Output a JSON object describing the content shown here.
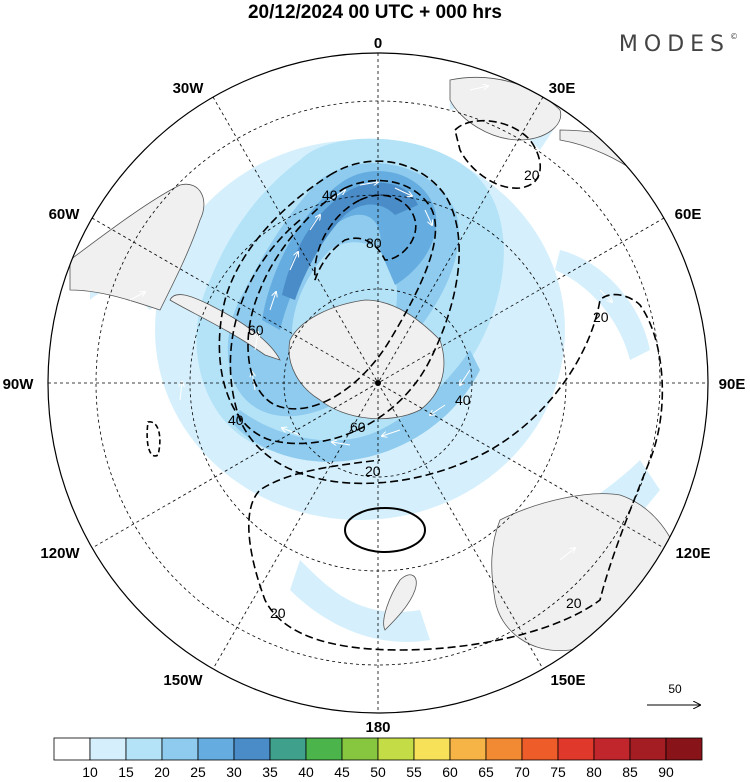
{
  "header": {
    "title": "20/12/2024  00 UTC  + 000 hrs",
    "brand": "MODES",
    "brand_mark": "©"
  },
  "map": {
    "projection": "south polar stereographic",
    "meridian_labels": [
      "0",
      "30E",
      "60E",
      "90E",
      "120E",
      "150E",
      "180",
      "150W",
      "120W",
      "90W",
      "60W",
      "30W"
    ],
    "contour_labels": [
      "40",
      "80",
      "60",
      "60",
      "40",
      "20",
      "20",
      "20",
      "40",
      "20",
      "20"
    ],
    "land_color": "#f0f0f0",
    "coast_color": "#555555"
  },
  "reference_vector": {
    "value": "50"
  },
  "colorbar": {
    "ticks": [
      "10",
      "15",
      "20",
      "25",
      "30",
      "35",
      "40",
      "45",
      "50",
      "55",
      "60",
      "65",
      "70",
      "75",
      "80",
      "85",
      "90"
    ],
    "colors": [
      "#ffffff",
      "#d5f0fc",
      "#b4e3f8",
      "#8ecbee",
      "#65ade0",
      "#4a8cc8",
      "#3fa08c",
      "#4bb44a",
      "#87c740",
      "#c4dc46",
      "#f7e159",
      "#f6b447",
      "#f28a34",
      "#ee5c29",
      "#e0382a",
      "#c0262b",
      "#a31d22",
      "#881419"
    ]
  }
}
